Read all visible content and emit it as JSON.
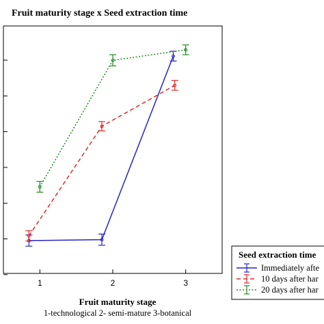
{
  "chart_data": {
    "type": "line",
    "title": "Fruit maturity stage x Seed extraction time",
    "xlabel": "Fruit maturity stage",
    "xlabel_sub": "1-technological  2- semi-mature  3-botanical",
    "ylabel": "",
    "x": [
      1,
      2,
      3
    ],
    "x_tick_labels": [
      "1",
      "2",
      "3"
    ],
    "y_ticks_labeled": false,
    "xlim": [
      0.5,
      3.5
    ],
    "ylim": [
      0,
      1
    ],
    "grid": false,
    "legend": {
      "title": "Seed extraction time",
      "placement": "bottom-right",
      "entries": [
        "Immediately afte",
        "10 days after har",
        "20 days after har"
      ]
    },
    "series": [
      {
        "name": "Immediately afte",
        "color": "#2424c8",
        "dash": "solid",
        "values": [
          0.082,
          0.086,
          0.871
        ],
        "err": [
          0.024,
          0.024,
          0.021
        ]
      },
      {
        "name": "10 days after har",
        "color": "#e02828",
        "dash": "dashed",
        "values": [
          0.102,
          0.571,
          0.746
        ],
        "err": [
          0.022,
          0.02,
          0.021
        ]
      },
      {
        "name": "20 days after har",
        "color": "#1e8c1e",
        "dash": "dotted",
        "values": [
          0.312,
          0.853,
          0.898
        ],
        "err": [
          0.023,
          0.024,
          0.021
        ]
      }
    ]
  }
}
